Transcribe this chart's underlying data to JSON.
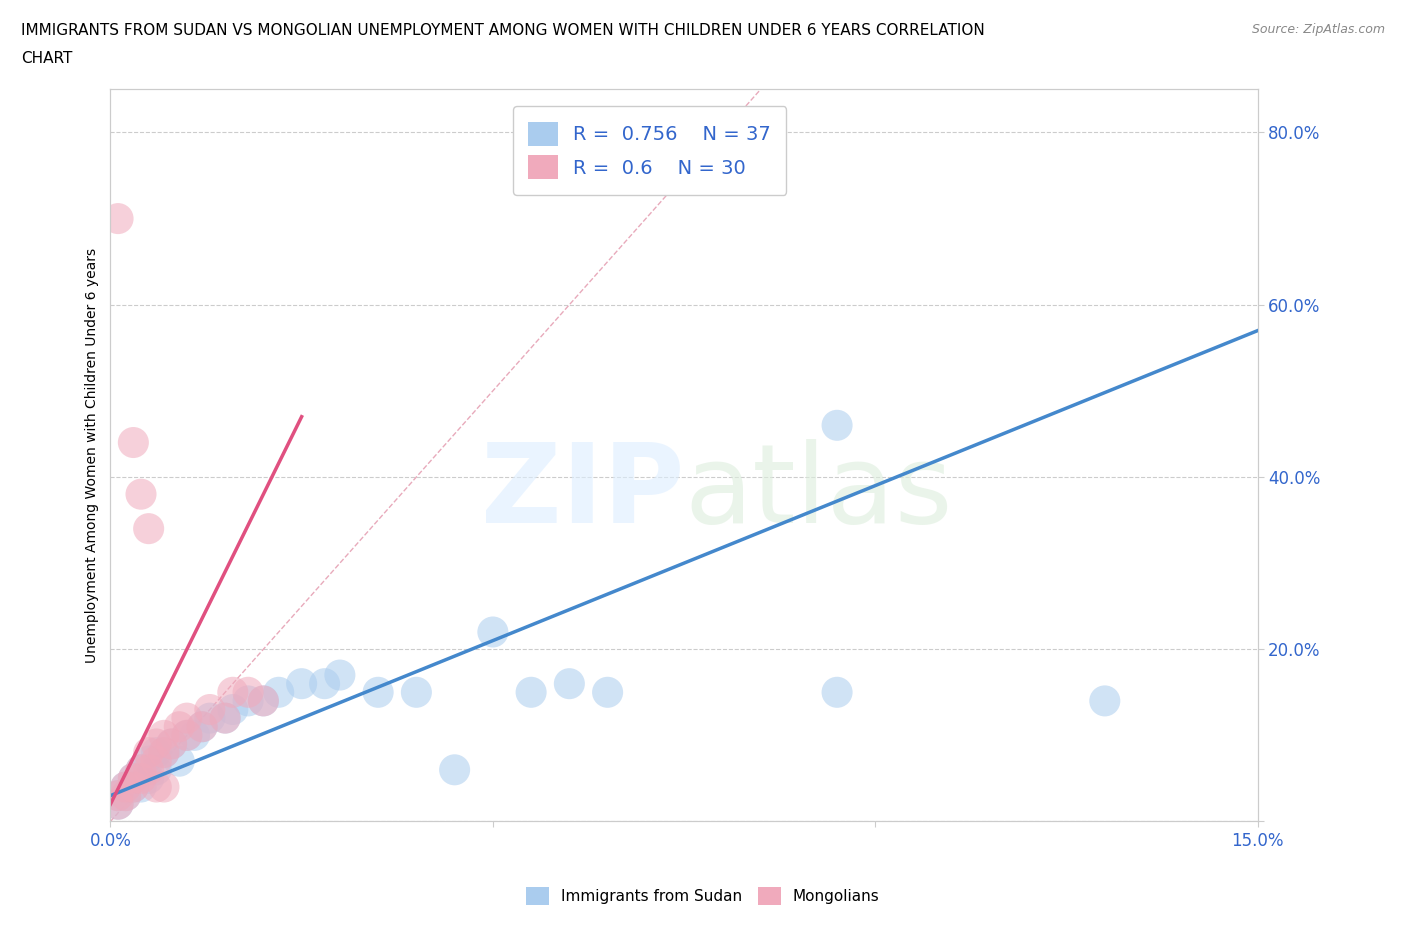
{
  "title_line1": "IMMIGRANTS FROM SUDAN VS MONGOLIAN UNEMPLOYMENT AMONG WOMEN WITH CHILDREN UNDER 6 YEARS CORRELATION",
  "title_line2": "CHART",
  "source": "Source: ZipAtlas.com",
  "ylabel": "Unemployment Among Women with Children Under 6 years",
  "xlim": [
    0.0,
    0.15
  ],
  "ylim": [
    0.0,
    0.85
  ],
  "sudan_color": "#aaccee",
  "mongolian_color": "#f0aabc",
  "sudan_R": 0.756,
  "sudan_N": 37,
  "mongolian_R": 0.6,
  "mongolian_N": 30,
  "trend_color_sudan": "#4488cc",
  "trend_color_mongolian": "#e05080",
  "diagonal_color": "#e8aabb",
  "legend_text_color": "#3366cc",
  "sudan_trend_x": [
    0.0,
    0.15
  ],
  "sudan_trend_y": [
    0.03,
    0.57
  ],
  "mongolian_trend_x": [
    0.0,
    0.025
  ],
  "mongolian_trend_y": [
    0.02,
    0.47
  ],
  "sudan_points": [
    [
      0.001,
      0.02
    ],
    [
      0.001,
      0.03
    ],
    [
      0.002,
      0.03
    ],
    [
      0.002,
      0.04
    ],
    [
      0.003,
      0.04
    ],
    [
      0.003,
      0.05
    ],
    [
      0.004,
      0.04
    ],
    [
      0.004,
      0.06
    ],
    [
      0.005,
      0.05
    ],
    [
      0.005,
      0.07
    ],
    [
      0.006,
      0.06
    ],
    [
      0.006,
      0.08
    ],
    [
      0.007,
      0.08
    ],
    [
      0.008,
      0.09
    ],
    [
      0.009,
      0.07
    ],
    [
      0.01,
      0.1
    ],
    [
      0.011,
      0.1
    ],
    [
      0.012,
      0.11
    ],
    [
      0.013,
      0.12
    ],
    [
      0.015,
      0.12
    ],
    [
      0.016,
      0.13
    ],
    [
      0.018,
      0.14
    ],
    [
      0.02,
      0.14
    ],
    [
      0.022,
      0.15
    ],
    [
      0.025,
      0.16
    ],
    [
      0.028,
      0.16
    ],
    [
      0.03,
      0.17
    ],
    [
      0.035,
      0.15
    ],
    [
      0.04,
      0.15
    ],
    [
      0.045,
      0.06
    ],
    [
      0.05,
      0.22
    ],
    [
      0.055,
      0.15
    ],
    [
      0.06,
      0.16
    ],
    [
      0.065,
      0.15
    ],
    [
      0.095,
      0.15
    ],
    [
      0.095,
      0.46
    ],
    [
      0.13,
      0.14
    ]
  ],
  "mongolian_points": [
    [
      0.001,
      0.02
    ],
    [
      0.001,
      0.03
    ],
    [
      0.002,
      0.03
    ],
    [
      0.002,
      0.04
    ],
    [
      0.003,
      0.04
    ],
    [
      0.003,
      0.05
    ],
    [
      0.004,
      0.05
    ],
    [
      0.004,
      0.06
    ],
    [
      0.005,
      0.06
    ],
    [
      0.005,
      0.08
    ],
    [
      0.006,
      0.07
    ],
    [
      0.006,
      0.09
    ],
    [
      0.007,
      0.08
    ],
    [
      0.007,
      0.1
    ],
    [
      0.008,
      0.09
    ],
    [
      0.009,
      0.11
    ],
    [
      0.01,
      0.1
    ],
    [
      0.01,
      0.12
    ],
    [
      0.012,
      0.11
    ],
    [
      0.013,
      0.13
    ],
    [
      0.015,
      0.12
    ],
    [
      0.016,
      0.15
    ],
    [
      0.018,
      0.15
    ],
    [
      0.02,
      0.14
    ],
    [
      0.001,
      0.7
    ],
    [
      0.003,
      0.44
    ],
    [
      0.004,
      0.38
    ],
    [
      0.005,
      0.34
    ],
    [
      0.006,
      0.04
    ],
    [
      0.007,
      0.04
    ]
  ]
}
